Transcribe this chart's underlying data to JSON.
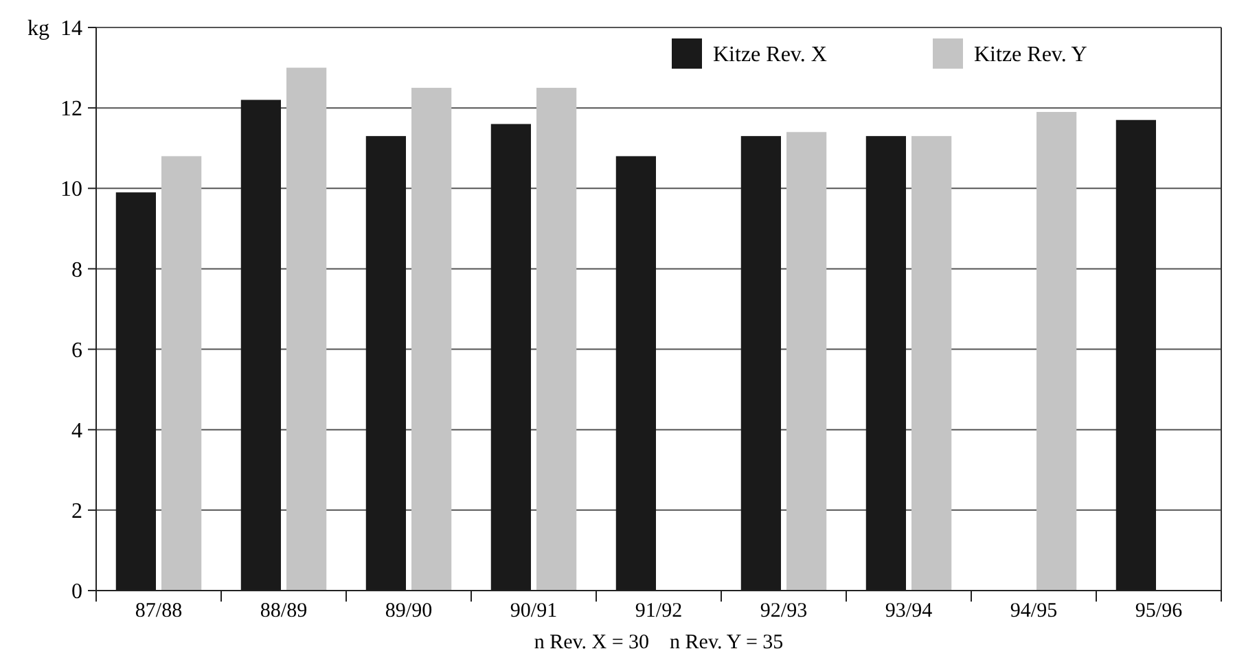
{
  "chart_data": {
    "type": "bar",
    "ylabel": "kg",
    "categories": [
      "87/88",
      "88/89",
      "89/90",
      "90/91",
      "91/92",
      "92/93",
      "93/94",
      "94/95",
      "95/96"
    ],
    "series": [
      {
        "name": "Kitze Rev. X",
        "color": "#1a1a1a",
        "values": [
          9.9,
          12.2,
          11.3,
          11.6,
          10.8,
          11.3,
          11.3,
          null,
          11.7
        ]
      },
      {
        "name": "Kitze Rev. Y",
        "color": "#c4c4c4",
        "values": [
          10.8,
          13.0,
          12.5,
          12.5,
          null,
          11.4,
          11.3,
          11.9,
          null
        ]
      }
    ],
    "ylim": [
      0,
      14
    ],
    "yticks": [
      0,
      2,
      4,
      6,
      8,
      10,
      12,
      14
    ],
    "grid": "y",
    "legend": "top right",
    "annotations": [
      "n Rev. X = 30    n Rev. Y = 35"
    ]
  }
}
